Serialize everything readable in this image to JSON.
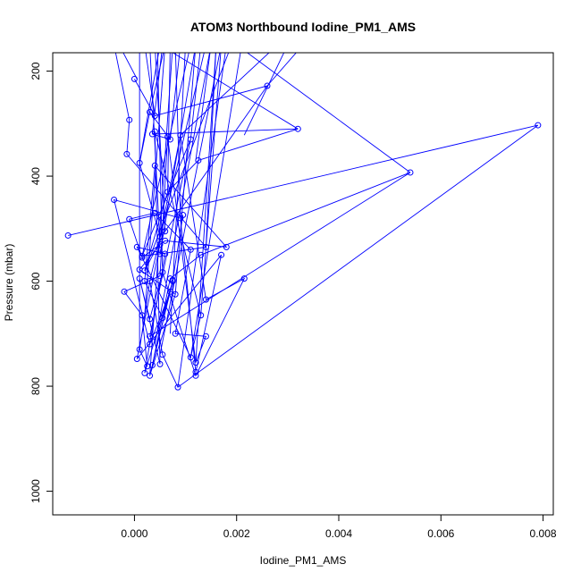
{
  "chart_data": {
    "type": "line",
    "title": "ATOM3 Northbound Iodine_PM1_AMS",
    "xlabel": "Iodine_PM1_AMS",
    "ylabel": "Pressure (mbar)",
    "xlim": [
      -0.0016,
      0.0082
    ],
    "ylim": [
      1045,
      165
    ],
    "y_reversed": true,
    "grid": false,
    "legend": "none",
    "x_ticks": [
      0.0,
      0.002,
      0.004,
      0.006,
      0.008
    ],
    "x_tick_labels": [
      "0.000",
      "0.002",
      "0.004",
      "0.006",
      "0.008"
    ],
    "y_ticks": [
      200,
      400,
      600,
      800,
      1000
    ],
    "y_tick_labels": [
      "200",
      "400",
      "600",
      "800",
      "1000"
    ],
    "series": [
      {
        "color": "#0000ff",
        "x": [
          -0.0013,
          0.0079,
          0.00085,
          0.00055,
          0.0003,
          0.0001,
          0.00025,
          0.00015,
          -0.0002,
          0.0005,
          0.00065,
          0.0012,
          0.0014,
          0.0008,
          0.0011,
          0.0004,
          -0.0001,
          0.00015,
          0.0006,
          0.0018,
          0.0004,
          0.0002,
          0.00055,
          0.0007,
          0.0003,
          -0.0004,
          0.0009,
          0.0012,
          0.0017,
          5e-05,
          0.0005,
          0.0001,
          0.0008,
          0.0003,
          0.00075,
          0.0002,
          0.0006,
          5e-05,
          0.0011,
          0.0013,
          0.0004,
          0.0005,
          0.0001,
          0.0003,
          0.00055,
          0.0012,
          0.00215,
          0.0014,
          0.0009,
          0.0005,
          0.0001,
          0.0003,
          0.0007,
          0.00035,
          0.0032,
          0.00125,
          0.00065,
          0.0002,
          0.0006,
          0.0026,
          0.0004,
          0.0
        ],
        "y": [
          513,
          303,
          802,
          740,
          600,
          730,
          762,
          665,
          620,
          590,
          325,
          755,
          705,
          700,
          540,
          470,
          482,
          555,
          523,
          535,
          380,
          600,
          670,
          620,
          720,
          445,
          480,
          773,
          550,
          748,
          530,
          578,
          625,
          780,
          600,
          775,
          548,
          535,
          745,
          665,
          315,
          758,
          595,
          672,
          583,
          780,
          595,
          635,
          322,
          515,
          375,
          278,
          330,
          320,
          310,
          370,
          430,
          580,
          505,
          228,
          285,
          215
        ]
      },
      {
        "color": "#0000ff",
        "x": [
          -0.0001,
          -0.00015,
          0.0014,
          0.0005,
          0.00015,
          0.0011,
          0.0003,
          0.0054,
          0.0013,
          0.0007,
          0.00035,
          0.00075,
          0.00095
        ],
        "y": [
          293,
          358,
          535,
          548,
          552,
          330,
          705,
          393,
          550,
          595,
          760,
          598,
          474
        ]
      }
    ]
  }
}
